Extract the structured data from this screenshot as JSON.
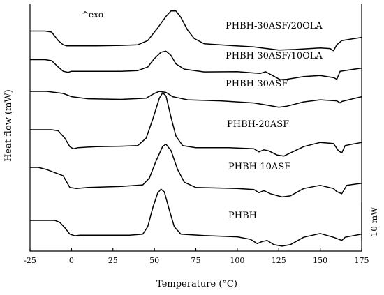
{
  "chart_data": {
    "type": "line",
    "title": "",
    "xlabel": "Temperature (°C)",
    "ylabel": "Heat flow (mW)",
    "xlim": [
      -25,
      175
    ],
    "x_ticks": [
      -25,
      0,
      25,
      50,
      75,
      100,
      125,
      150,
      175
    ],
    "grid": false,
    "annotations": {
      "exo": "^exo",
      "scale_bar": "10 mW"
    },
    "scale_bar_mW": 10,
    "series": [
      {
        "name": "PHBH-30ASF/20OLA",
        "points": [
          [
            -25,
            -1.5
          ],
          [
            -16,
            -1.5
          ],
          [
            -12,
            -2.0
          ],
          [
            -8,
            -6.0
          ],
          [
            -5,
            -8.0
          ],
          [
            -3,
            -8.5
          ],
          [
            0,
            -8.5
          ],
          [
            15,
            -8.5
          ],
          [
            30,
            -8.3
          ],
          [
            40,
            -8.0
          ],
          [
            46,
            -6.0
          ],
          [
            52,
            0.0
          ],
          [
            57,
            5.5
          ],
          [
            60,
            8.0
          ],
          [
            63,
            8.0
          ],
          [
            66,
            5.0
          ],
          [
            70,
            -1.0
          ],
          [
            74,
            -5.0
          ],
          [
            80,
            -7.5
          ],
          [
            95,
            -8.3
          ],
          [
            110,
            -9.0
          ],
          [
            125,
            -10.5
          ],
          [
            135,
            -10.2
          ],
          [
            150,
            -9.5
          ],
          [
            156,
            -9.8
          ],
          [
            158,
            -10.8
          ],
          [
            160,
            -8.0
          ],
          [
            163,
            -6.0
          ],
          [
            175,
            -4.5
          ]
        ]
      },
      {
        "name": "PHBH-30ASF/10OLA",
        "points": [
          [
            -25,
            -0.5
          ],
          [
            -16,
            -0.5
          ],
          [
            -12,
            -1.0
          ],
          [
            -8,
            -4.0
          ],
          [
            -5,
            -6.0
          ],
          [
            -2,
            -6.5
          ],
          [
            0,
            -6.0
          ],
          [
            15,
            -6.0
          ],
          [
            30,
            -6.0
          ],
          [
            40,
            -5.7
          ],
          [
            46,
            -4.0
          ],
          [
            50,
            0.0
          ],
          [
            54,
            3.0
          ],
          [
            57,
            3.5
          ],
          [
            60,
            1.5
          ],
          [
            63,
            -2.5
          ],
          [
            68,
            -5.0
          ],
          [
            80,
            -6.3
          ],
          [
            100,
            -6.2
          ],
          [
            110,
            -6.8
          ],
          [
            114,
            -7.0
          ],
          [
            117,
            -6.2
          ],
          [
            120,
            -7.5
          ],
          [
            126,
            -10.0
          ],
          [
            130,
            -9.8
          ],
          [
            140,
            -8.5
          ],
          [
            150,
            -8.0
          ],
          [
            158,
            -9.0
          ],
          [
            160,
            -9.8
          ],
          [
            162,
            -6.0
          ],
          [
            175,
            -4.5
          ]
        ]
      },
      {
        "name": "PHBH-30ASF",
        "points": [
          [
            -25,
            0.0
          ],
          [
            -15,
            0.0
          ],
          [
            -5,
            -1.0
          ],
          [
            0,
            -2.5
          ],
          [
            10,
            -3.5
          ],
          [
            30,
            -3.8
          ],
          [
            45,
            -3.2
          ],
          [
            50,
            -1.0
          ],
          [
            53,
            0.0
          ],
          [
            57,
            -0.5
          ],
          [
            61,
            -2.5
          ],
          [
            70,
            -4.0
          ],
          [
            90,
            -4.5
          ],
          [
            110,
            -5.5
          ],
          [
            120,
            -6.8
          ],
          [
            125,
            -7.5
          ],
          [
            130,
            -7.0
          ],
          [
            140,
            -5.0
          ],
          [
            150,
            -4.0
          ],
          [
            160,
            -4.5
          ],
          [
            162,
            -5.5
          ],
          [
            163,
            -4.8
          ],
          [
            175,
            -2.5
          ]
        ]
      },
      {
        "name": "PHBH-20ASF",
        "points": [
          [
            -25,
            -1.0
          ],
          [
            -12,
            -1.0
          ],
          [
            -8,
            -1.5
          ],
          [
            -4,
            -5.0
          ],
          [
            -1,
            -9.0
          ],
          [
            1,
            -10.0
          ],
          [
            4,
            -9.5
          ],
          [
            15,
            -9.0
          ],
          [
            30,
            -8.8
          ],
          [
            40,
            -8.5
          ],
          [
            45,
            -5.0
          ],
          [
            49,
            4.0
          ],
          [
            53,
            14.0
          ],
          [
            55,
            16.5
          ],
          [
            57,
            15.0
          ],
          [
            60,
            5.0
          ],
          [
            63,
            -4.0
          ],
          [
            67,
            -8.5
          ],
          [
            75,
            -9.5
          ],
          [
            95,
            -9.5
          ],
          [
            110,
            -10.0
          ],
          [
            113,
            -11.5
          ],
          [
            116,
            -10.5
          ],
          [
            119,
            -11.0
          ],
          [
            124,
            -13.0
          ],
          [
            128,
            -13.5
          ],
          [
            140,
            -9.0
          ],
          [
            150,
            -7.0
          ],
          [
            158,
            -7.5
          ],
          [
            161,
            -11.0
          ],
          [
            163,
            -12.0
          ],
          [
            165,
            -8.5
          ],
          [
            175,
            -7.0
          ]
        ]
      },
      {
        "name": "PHBH-10ASF",
        "points": [
          [
            -25,
            -1.0
          ],
          [
            -20,
            -1.0
          ],
          [
            -15,
            -2.0
          ],
          [
            -5,
            -5.0
          ],
          [
            -1,
            -10.5
          ],
          [
            3,
            -11.0
          ],
          [
            10,
            -10.5
          ],
          [
            30,
            -10.0
          ],
          [
            43,
            -9.3
          ],
          [
            47,
            -6.0
          ],
          [
            51,
            2.0
          ],
          [
            55,
            9.0
          ],
          [
            57,
            10.0
          ],
          [
            60,
            7.0
          ],
          [
            64,
            -2.0
          ],
          [
            68,
            -8.0
          ],
          [
            75,
            -10.5
          ],
          [
            100,
            -11.0
          ],
          [
            110,
            -11.5
          ],
          [
            113,
            -13.0
          ],
          [
            116,
            -12.0
          ],
          [
            120,
            -13.5
          ],
          [
            127,
            -15.0
          ],
          [
            132,
            -14.5
          ],
          [
            140,
            -11.0
          ],
          [
            150,
            -9.5
          ],
          [
            158,
            -11.0
          ],
          [
            160,
            -12.5
          ],
          [
            163,
            -13.5
          ],
          [
            166,
            -9.5
          ],
          [
            175,
            -8.5
          ]
        ]
      },
      {
        "name": "PHBH",
        "points": [
          [
            -25,
            0.0
          ],
          [
            -10,
            0.0
          ],
          [
            -7,
            -1.0
          ],
          [
            -4,
            -3.5
          ],
          [
            -1,
            -6.5
          ],
          [
            2,
            -7.3
          ],
          [
            5,
            -7.0
          ],
          [
            20,
            -7.0
          ],
          [
            35,
            -7.0
          ],
          [
            43,
            -6.5
          ],
          [
            46,
            -3.0
          ],
          [
            49,
            6.0
          ],
          [
            52,
            13.0
          ],
          [
            54,
            14.8
          ],
          [
            56,
            13.5
          ],
          [
            59,
            5.0
          ],
          [
            62,
            -3.0
          ],
          [
            66,
            -6.5
          ],
          [
            80,
            -7.2
          ],
          [
            100,
            -7.8
          ],
          [
            108,
            -9.0
          ],
          [
            112,
            -11.0
          ],
          [
            115,
            -10.0
          ],
          [
            118,
            -9.5
          ],
          [
            122,
            -11.5
          ],
          [
            127,
            -12.2
          ],
          [
            132,
            -11.5
          ],
          [
            140,
            -8.0
          ],
          [
            150,
            -6.2
          ],
          [
            158,
            -8.0
          ],
          [
            163,
            -9.5
          ],
          [
            165,
            -8.0
          ],
          [
            175,
            -6.5
          ]
        ]
      }
    ]
  }
}
